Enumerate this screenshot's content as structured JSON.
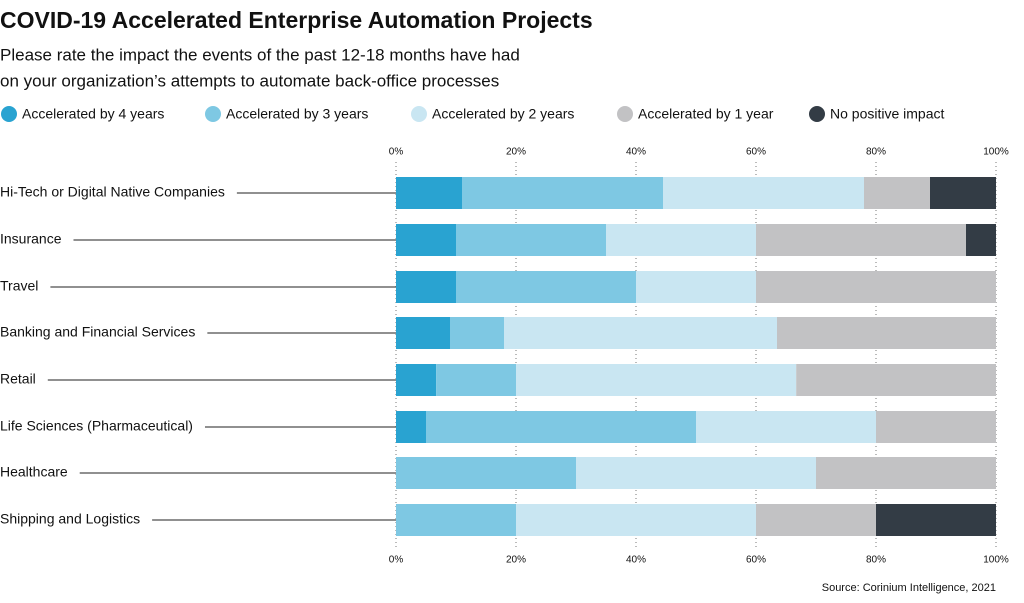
{
  "chart_data": {
    "type": "stacked-bar-horizontal",
    "title": "COVID-19 Accelerated Enterprise Automation Projects",
    "subtitle": [
      "Please rate the impact the events of the past 12-18 months have had",
      "on your organization’s attempts to automate back-office processes"
    ],
    "source": "Source: Corinium Intelligence, 2021",
    "categories": [
      "Hi-Tech or Digital Native Companies",
      "Insurance",
      "Travel",
      "Banking and Financial Services",
      "Retail",
      "Life Sciences (Pharmaceutical)",
      "Healthcare",
      "Shipping and Logistics"
    ],
    "series": [
      {
        "name": "Accelerated by 4 years",
        "color": "#29a3d1",
        "values": [
          11,
          10,
          10,
          9,
          6.7,
          5,
          0,
          0
        ]
      },
      {
        "name": "Accelerated by 3 years",
        "color": "#7ec8e3",
        "values": [
          33.5,
          25,
          30,
          9,
          13.3,
          45,
          30,
          20
        ]
      },
      {
        "name": "Accelerated by 2 years",
        "color": "#c9e6f2",
        "values": [
          33.5,
          25,
          20,
          45.5,
          46.7,
          30,
          40,
          40
        ]
      },
      {
        "name": "Accelerated by 1 year",
        "color": "#c2c2c4",
        "values": [
          11,
          35,
          40,
          36.5,
          33.3,
          20,
          30,
          20
        ]
      },
      {
        "name": "No positive impact",
        "color": "#333c45",
        "values": [
          11,
          5,
          0,
          0,
          0,
          0,
          0,
          20
        ]
      }
    ],
    "xlim": [
      0,
      100
    ],
    "xticks": [
      {
        "value": 0,
        "label": "0%"
      },
      {
        "value": 20,
        "label": "20%"
      },
      {
        "value": 40,
        "label": "40%"
      },
      {
        "value": 60,
        "label": "60%"
      },
      {
        "value": 80,
        "label": "80%"
      },
      {
        "value": 100,
        "label": "100%"
      }
    ],
    "grid": true
  }
}
